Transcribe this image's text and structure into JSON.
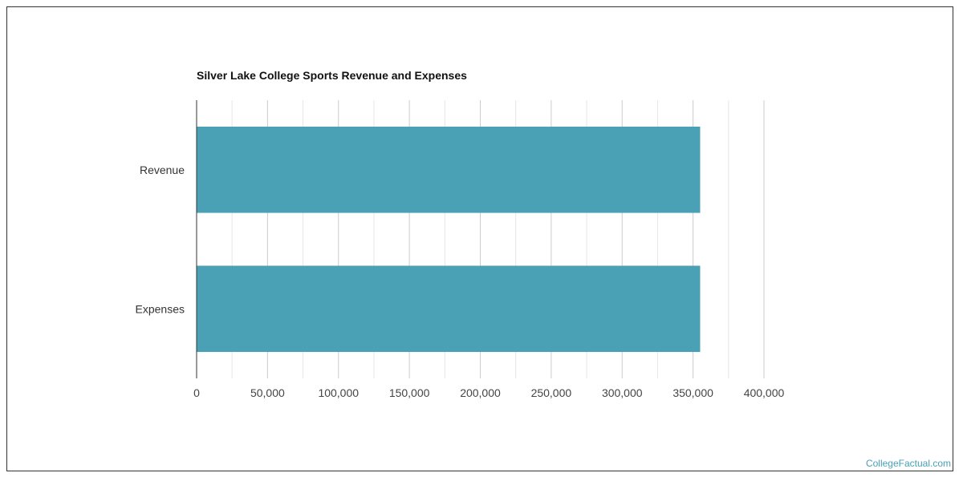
{
  "chart_data": {
    "type": "bar",
    "orientation": "horizontal",
    "title": "Silver Lake College Sports Revenue and Expenses",
    "categories": [
      "Revenue",
      "Expenses"
    ],
    "values": [
      355000,
      355000
    ],
    "xlim": [
      0,
      400000
    ],
    "xticks": [
      "0",
      "50,000",
      "100,000",
      "150,000",
      "200,000",
      "250,000",
      "300,000",
      "350,000",
      "400,000"
    ],
    "xlabel": "",
    "ylabel": "",
    "grid": true,
    "bar_color": "#4aa0b5"
  },
  "watermark": "CollegeFactual.com"
}
